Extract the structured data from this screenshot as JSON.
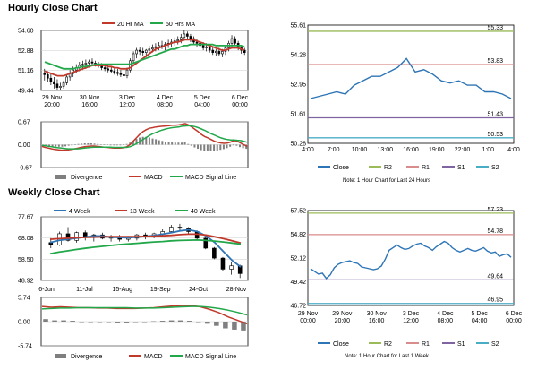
{
  "colors": {
    "ma20": "#c0392b",
    "ma50": "#22a84a",
    "macd": "#c0392b",
    "signal": "#22a84a",
    "divergence": "#7f7f7f",
    "close": "#2e75b6",
    "r2": "#9bbb59",
    "r1": "#d98c8c",
    "s1": "#8064a2",
    "s2": "#4bacc6",
    "candle": "#000000",
    "ma4": "#2e75b6",
    "ma13": "#c0392b",
    "ma40": "#22a84a",
    "grid": "#cccccc"
  },
  "hourly": {
    "title": "Hourly Close Chart",
    "price_chart": {
      "type": "candlestick",
      "legend": [
        "20 Hr MA",
        "50 Hrs MA"
      ],
      "ylim": [
        49.44,
        54.6
      ],
      "yticks": [
        "54.60",
        "52.88",
        "51.16",
        "49.44"
      ],
      "xticks": [
        [
          "29 Nov",
          "20:00"
        ],
        [
          "30 Nov",
          "16:00"
        ],
        [
          "3 Dec",
          "12:00"
        ],
        [
          "4 Dec",
          "08:00"
        ],
        [
          "5 Dec",
          "04:00"
        ],
        [
          "6 Dec",
          "00:00"
        ]
      ],
      "candles": [
        [
          50.9,
          51.3,
          50.3,
          50.8
        ],
        [
          50.8,
          51.1,
          50.2,
          50.5
        ],
        [
          50.5,
          50.9,
          49.9,
          50.2
        ],
        [
          50.2,
          50.6,
          49.6,
          50.0
        ],
        [
          50.0,
          50.4,
          49.5,
          49.7
        ],
        [
          49.7,
          50.1,
          49.5,
          49.8
        ],
        [
          49.8,
          50.3,
          49.6,
          50.1
        ],
        [
          50.1,
          50.8,
          49.9,
          50.6
        ],
        [
          50.6,
          51.2,
          50.3,
          50.9
        ],
        [
          50.9,
          51.5,
          50.6,
          51.2
        ],
        [
          51.2,
          51.7,
          50.9,
          51.4
        ],
        [
          51.4,
          51.9,
          51.1,
          51.6
        ],
        [
          51.6,
          52.0,
          51.2,
          51.7
        ],
        [
          51.7,
          52.1,
          51.3,
          51.8
        ],
        [
          51.8,
          52.1,
          51.4,
          51.9
        ],
        [
          51.9,
          52.2,
          51.6,
          51.8
        ],
        [
          51.8,
          52.0,
          51.5,
          51.7
        ],
        [
          51.7,
          51.9,
          51.4,
          51.6
        ],
        [
          51.6,
          51.8,
          51.2,
          51.4
        ],
        [
          51.4,
          51.7,
          51.1,
          51.3
        ],
        [
          51.3,
          51.6,
          51.0,
          51.2
        ],
        [
          51.2,
          51.5,
          50.9,
          51.1
        ],
        [
          51.1,
          51.4,
          50.8,
          51.0
        ],
        [
          51.0,
          51.3,
          50.7,
          50.9
        ],
        [
          50.9,
          51.2,
          50.6,
          50.8
        ],
        [
          50.8,
          51.1,
          50.5,
          50.7
        ],
        [
          50.7,
          51.4,
          50.5,
          51.2
        ],
        [
          51.2,
          52.2,
          51.0,
          52.0
        ],
        [
          52.0,
          52.8,
          51.8,
          52.6
        ],
        [
          52.6,
          53.1,
          52.2,
          52.9
        ],
        [
          52.9,
          53.2,
          52.5,
          52.8
        ],
        [
          52.8,
          53.1,
          52.4,
          52.7
        ],
        [
          52.7,
          53.0,
          52.3,
          52.9
        ],
        [
          52.9,
          53.3,
          52.6,
          53.0
        ],
        [
          53.0,
          53.4,
          52.7,
          53.1
        ],
        [
          53.1,
          53.5,
          52.8,
          53.2
        ],
        [
          53.2,
          53.6,
          52.9,
          53.3
        ],
        [
          53.3,
          53.7,
          53.0,
          53.2
        ],
        [
          53.2,
          53.6,
          52.9,
          53.4
        ],
        [
          53.4,
          53.8,
          53.1,
          53.5
        ],
        [
          53.5,
          53.9,
          53.2,
          53.6
        ],
        [
          53.6,
          54.0,
          53.3,
          53.7
        ],
        [
          53.7,
          54.1,
          53.4,
          53.8
        ],
        [
          53.8,
          54.3,
          53.5,
          54.0
        ],
        [
          54.0,
          54.6,
          53.7,
          54.3
        ],
        [
          54.3,
          54.5,
          53.8,
          54.1
        ],
        [
          54.1,
          54.3,
          53.6,
          53.9
        ],
        [
          53.9,
          54.1,
          53.4,
          53.6
        ],
        [
          53.6,
          53.9,
          53.2,
          53.5
        ],
        [
          53.5,
          53.8,
          53.1,
          53.3
        ],
        [
          53.3,
          53.6,
          52.9,
          53.1
        ],
        [
          53.1,
          53.5,
          52.8,
          53.2
        ],
        [
          53.2,
          53.4,
          52.7,
          52.9
        ],
        [
          52.9,
          53.2,
          52.5,
          52.7
        ],
        [
          52.7,
          53.0,
          52.4,
          52.8
        ],
        [
          52.8,
          53.1,
          52.4,
          52.6
        ],
        [
          52.6,
          53.0,
          52.3,
          52.8
        ],
        [
          52.8,
          53.3,
          52.5,
          53.1
        ],
        [
          53.1,
          53.7,
          52.8,
          53.5
        ],
        [
          53.5,
          54.2,
          53.2,
          53.9
        ],
        [
          53.9,
          54.1,
          53.3,
          53.5
        ],
        [
          53.5,
          53.7,
          52.9,
          53.1
        ],
        [
          53.1,
          53.3,
          52.6,
          52.9
        ],
        [
          52.9,
          53.1,
          52.5,
          52.7
        ]
      ],
      "ma20": [
        51.1,
        51.0,
        50.9,
        50.8,
        50.7,
        50.7,
        50.7,
        50.8,
        50.9,
        51.0,
        51.1,
        51.2,
        51.3,
        51.4,
        51.5,
        51.6,
        51.6,
        51.6,
        51.6,
        51.6,
        51.5,
        51.5,
        51.4,
        51.4,
        51.3,
        51.3,
        51.3,
        51.4,
        51.6,
        51.8,
        52.0,
        52.2,
        52.4,
        52.6,
        52.8,
        53.0,
        53.1,
        53.2,
        53.3,
        53.4,
        53.5,
        53.6,
        53.6,
        53.7,
        53.8,
        53.8,
        53.8,
        53.8,
        53.7,
        53.6,
        53.5,
        53.4,
        53.3,
        53.2,
        53.1,
        53.0,
        52.9,
        52.9,
        53.0,
        53.1,
        53.1,
        53.1,
        53.0,
        52.9
      ],
      "ma50": [
        51.9,
        51.8,
        51.7,
        51.6,
        51.5,
        51.4,
        51.3,
        51.3,
        51.3,
        51.3,
        51.4,
        51.4,
        51.5,
        51.5,
        51.6,
        51.6,
        51.7,
        51.7,
        51.7,
        51.7,
        51.7,
        51.7,
        51.7,
        51.7,
        51.7,
        51.7,
        51.7,
        51.7,
        51.8,
        51.9,
        52.0,
        52.1,
        52.2,
        52.3,
        52.4,
        52.5,
        52.6,
        52.7,
        52.8,
        52.9,
        53.0,
        53.0,
        53.1,
        53.2,
        53.3,
        53.3,
        53.4,
        53.4,
        53.4,
        53.4,
        53.4,
        53.4,
        53.4,
        53.4,
        53.3,
        53.3,
        53.3,
        53.3,
        53.3,
        53.3,
        53.3,
        53.3,
        53.3,
        53.2
      ]
    },
    "macd_chart": {
      "type": "macd",
      "ylim": [
        -0.67,
        0.67
      ],
      "yticks": [
        "0.67",
        "0.00",
        "-0.67"
      ],
      "legend": [
        "Divergence",
        "MACD",
        "MACD Signal Line"
      ],
      "macd": [
        -0.05,
        -0.08,
        -0.1,
        -0.12,
        -0.14,
        -0.15,
        -0.16,
        -0.16,
        -0.15,
        -0.14,
        -0.12,
        -0.1,
        -0.08,
        -0.06,
        -0.05,
        -0.04,
        -0.04,
        -0.05,
        -0.06,
        -0.07,
        -0.08,
        -0.09,
        -0.1,
        -0.1,
        -0.1,
        -0.09,
        -0.06,
        0.0,
        0.1,
        0.2,
        0.3,
        0.38,
        0.44,
        0.48,
        0.5,
        0.52,
        0.53,
        0.54,
        0.55,
        0.56,
        0.57,
        0.57,
        0.58,
        0.6,
        0.62,
        0.58,
        0.52,
        0.45,
        0.38,
        0.3,
        0.24,
        0.2,
        0.15,
        0.1,
        0.07,
        0.05,
        0.04,
        0.05,
        0.08,
        0.12,
        0.1,
        0.05,
        0.0,
        -0.05
      ],
      "signal": [
        -0.02,
        -0.03,
        -0.05,
        -0.06,
        -0.08,
        -0.09,
        -0.1,
        -0.11,
        -0.12,
        -0.12,
        -0.12,
        -0.12,
        -0.11,
        -0.1,
        -0.09,
        -0.08,
        -0.07,
        -0.07,
        -0.07,
        -0.07,
        -0.07,
        -0.07,
        -0.08,
        -0.08,
        -0.08,
        -0.08,
        -0.08,
        -0.06,
        -0.02,
        0.03,
        0.09,
        0.15,
        0.21,
        0.27,
        0.32,
        0.36,
        0.4,
        0.43,
        0.46,
        0.48,
        0.5,
        0.51,
        0.52,
        0.54,
        0.55,
        0.56,
        0.55,
        0.53,
        0.5,
        0.46,
        0.42,
        0.37,
        0.32,
        0.28,
        0.24,
        0.2,
        0.17,
        0.15,
        0.14,
        0.14,
        0.13,
        0.12,
        0.1,
        0.07
      ]
    },
    "close_chart": {
      "type": "line",
      "ylim": [
        50.28,
        55.61
      ],
      "yticks": [
        "55.61",
        "54.28",
        "52.95",
        "51.61",
        "50.28"
      ],
      "xticks": [
        "4:00",
        "7:00",
        "10:00",
        "13:00",
        "16:00",
        "19:00",
        "22:00",
        "1:00",
        "4:00"
      ],
      "close": [
        52.3,
        52.4,
        52.5,
        52.6,
        52.5,
        52.9,
        53.1,
        53.3,
        53.3,
        53.5,
        53.7,
        54.1,
        53.5,
        53.6,
        53.4,
        53.1,
        53.0,
        53.1,
        52.9,
        52.9,
        52.6,
        52.6,
        52.5,
        52.3
      ],
      "levels": {
        "R2": 55.33,
        "R1": 53.83,
        "S1": 51.43,
        "S2": 50.53
      },
      "level_labels": [
        "55.33",
        "53.83",
        "51.43",
        "50.53"
      ],
      "legend": [
        "Close",
        "R2",
        "R1",
        "S1",
        "S2"
      ],
      "note": "Note: 1 Hour Chart for Last 24 Hours"
    }
  },
  "weekly": {
    "title": "Weekly Close Chart",
    "price_chart": {
      "type": "candlestick",
      "legend": [
        "4 Week",
        "13 Week",
        "40 Week"
      ],
      "ylim": [
        48.92,
        77.67
      ],
      "yticks": [
        "77.67",
        "68.08",
        "58.50",
        "48.92"
      ],
      "xticks": [
        "6-Jun",
        "11-Jul",
        "15-Aug",
        "19-Sep",
        "24-Oct",
        "28-Nov"
      ],
      "candles": [
        [
          66.0,
          68.0,
          63.5,
          65.0
        ],
        [
          65.0,
          71.0,
          64.5,
          70.0
        ],
        [
          70.0,
          73.0,
          66.5,
          67.0
        ],
        [
          67.0,
          71.0,
          66.0,
          70.5
        ],
        [
          70.5,
          71.5,
          67.0,
          68.5
        ],
        [
          68.5,
          70.0,
          66.5,
          69.5
        ],
        [
          69.5,
          70.5,
          67.5,
          68.0
        ],
        [
          68.0,
          69.5,
          66.5,
          68.5
        ],
        [
          68.5,
          69.5,
          66.5,
          67.5
        ],
        [
          67.5,
          69.0,
          66.5,
          68.0
        ],
        [
          68.0,
          70.0,
          67.0,
          69.5
        ],
        [
          69.5,
          70.5,
          67.5,
          68.5
        ],
        [
          68.5,
          70.5,
          68.0,
          70.0
        ],
        [
          70.0,
          72.0,
          69.0,
          71.0
        ],
        [
          71.0,
          74.0,
          70.5,
          73.0
        ],
        [
          73.0,
          74.5,
          71.5,
          72.5
        ],
        [
          72.5,
          73.0,
          70.0,
          71.0
        ],
        [
          71.0,
          71.5,
          67.5,
          68.0
        ],
        [
          68.0,
          68.5,
          63.0,
          63.5
        ],
        [
          63.5,
          64.0,
          58.5,
          59.0
        ],
        [
          59.0,
          59.5,
          53.0,
          54.0
        ],
        [
          54.0,
          57.0,
          51.5,
          55.5
        ],
        [
          55.5,
          56.0,
          50.0,
          52.0
        ]
      ],
      "ma4": [
        66.0,
        67.0,
        67.5,
        68.0,
        68.5,
        69.0,
        69.0,
        68.5,
        68.3,
        68.2,
        68.5,
        68.8,
        69.2,
        69.8,
        70.5,
        71.3,
        71.8,
        71.0,
        69.0,
        66.0,
        62.0,
        58.0,
        55.0
      ],
      "ma13": [
        67.5,
        67.8,
        68.0,
        68.2,
        68.4,
        68.5,
        68.6,
        68.7,
        68.7,
        68.7,
        68.7,
        68.8,
        68.9,
        69.1,
        69.3,
        69.6,
        69.8,
        69.8,
        69.4,
        68.7,
        67.8,
        66.8,
        65.8
      ],
      "ma40": [
        61.0,
        61.7,
        62.3,
        62.9,
        63.4,
        63.9,
        64.3,
        64.7,
        65.1,
        65.4,
        65.7,
        66.0,
        66.3,
        66.5,
        66.8,
        67.0,
        67.1,
        67.2,
        67.0,
        66.7,
        66.3,
        65.8,
        65.3
      ]
    },
    "macd_chart": {
      "type": "macd",
      "ylim": [
        -5.74,
        5.74
      ],
      "yticks": [
        "5.74",
        "0.00",
        "-5.74"
      ],
      "legend": [
        "Divergence",
        "MACD",
        "MACD Signal Line"
      ],
      "macd": [
        3.6,
        3.4,
        3.5,
        3.4,
        3.3,
        3.3,
        3.2,
        3.2,
        3.1,
        3.1,
        3.1,
        3.2,
        3.3,
        3.5,
        3.7,
        3.8,
        3.8,
        3.5,
        2.9,
        2.1,
        1.1,
        0.3,
        -0.5
      ],
      "signal": [
        3.0,
        3.1,
        3.2,
        3.2,
        3.3,
        3.3,
        3.3,
        3.3,
        3.3,
        3.3,
        3.2,
        3.2,
        3.2,
        3.3,
        3.4,
        3.5,
        3.6,
        3.6,
        3.4,
        3.1,
        2.7,
        2.2,
        1.6
      ]
    },
    "close_chart": {
      "type": "line",
      "ylim": [
        46.72,
        57.52
      ],
      "yticks": [
        "57.52",
        "54.82",
        "52.12",
        "49.42",
        "46.72"
      ],
      "xticks": [
        [
          "29 Nov",
          "00:00"
        ],
        [
          "29 Nov",
          "20:00"
        ],
        [
          "30 Nov",
          "16:00"
        ],
        [
          "3 Dec",
          "12:00"
        ],
        [
          "4 Dec",
          "08:00"
        ],
        [
          "5 Dec",
          "04:00"
        ],
        [
          "6 Dec",
          "00:00"
        ]
      ],
      "close": [
        50.9,
        50.6,
        50.3,
        50.4,
        49.8,
        50.2,
        51.0,
        51.4,
        51.6,
        51.7,
        51.8,
        51.6,
        51.5,
        51.1,
        51.0,
        50.9,
        50.8,
        50.9,
        51.2,
        52.0,
        53.0,
        53.3,
        53.6,
        53.3,
        53.1,
        53.2,
        53.5,
        53.7,
        53.8,
        53.5,
        53.3,
        53.0,
        53.4,
        53.7,
        54.0,
        53.8,
        53.3,
        53.0,
        52.8,
        53.0,
        53.2,
        53.0,
        52.9,
        53.1,
        53.3,
        52.9,
        52.7,
        52.8,
        52.3,
        52.5,
        52.6,
        52.2
      ],
      "levels": {
        "R2": 57.23,
        "R1": 54.78,
        "S1": 49.64,
        "S2": 46.95
      },
      "level_labels": [
        "57.23",
        "54.78",
        "49.64",
        "46.95"
      ],
      "legend": [
        "Close",
        "R2",
        "R1",
        "S1",
        "S2"
      ],
      "note": "Note: 1 Hour Chart for Last 1 Week"
    }
  }
}
